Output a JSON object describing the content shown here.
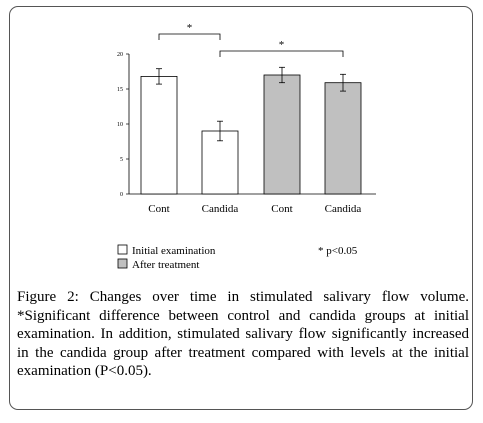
{
  "chart_data": {
    "type": "bar",
    "categories": [
      "Cont",
      "Candida",
      "Cont",
      "Candida"
    ],
    "values": [
      16.8,
      9.0,
      17.0,
      15.9
    ],
    "errors": [
      1.1,
      1.4,
      1.1,
      1.2
    ],
    "groups": [
      "Initial examination",
      "Initial examination",
      "After treatment",
      "After treatment"
    ],
    "ylim": [
      0,
      20
    ],
    "yticks": [
      "0",
      "5",
      "10",
      "15",
      "20"
    ],
    "fill_colors": [
      "#ffffff",
      "#ffffff",
      "#c0c0c0",
      "#c0c0c0"
    ],
    "significance": [
      {
        "from": 0,
        "to": 1,
        "label": "*"
      },
      {
        "from": 1,
        "to": 3,
        "label": "*"
      }
    ],
    "legend": [
      {
        "label": "Initial examination",
        "color": "#ffffff"
      },
      {
        "label": "After treatment",
        "color": "#c0c0c0"
      }
    ],
    "note": "* p<0.05"
  },
  "caption": {
    "label": "Figure 2:",
    "text": " Changes over time in stimulated salivary flow volume. *Significant difference between control and candida groups at initial examination. In addition, stimulated salivary flow significantly increased in the candida group after treatment compared with levels at the initial examination (P<0.05)."
  }
}
